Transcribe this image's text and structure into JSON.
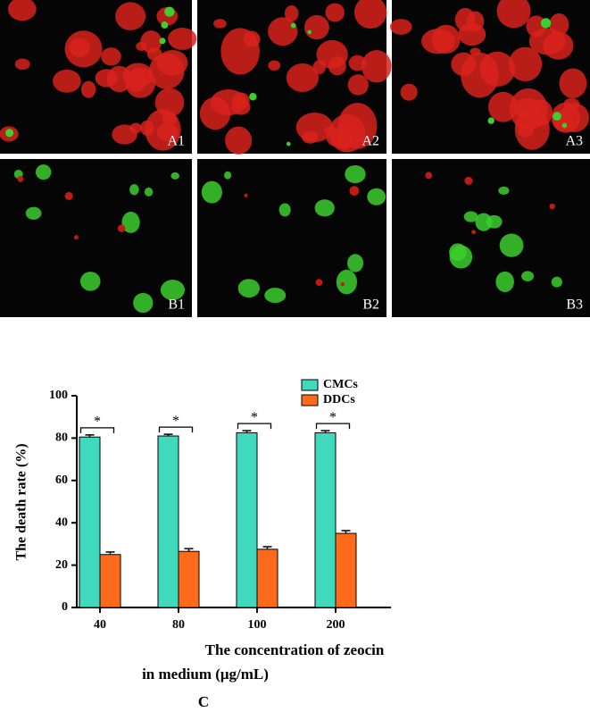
{
  "panel_labels": [
    "A1",
    "A2",
    "A3",
    "B1",
    "B2",
    "B3"
  ],
  "figure_label": "C",
  "chart_data": {
    "type": "bar",
    "y_label": "The death rate (%)",
    "x_label": [
      "The concentration of zeocin",
      "in medium (μg/mL)"
    ],
    "categories": [
      "40",
      "80",
      "100",
      "200"
    ],
    "series": [
      {
        "name": "CMCs",
        "color": "#40d9bd",
        "values": [
          80.5,
          81,
          82.5,
          82.5
        ],
        "errors": [
          1,
          0.8,
          1,
          1
        ]
      },
      {
        "name": "DDCs",
        "color": "#ff6a1a",
        "values": [
          25,
          26.5,
          27.5,
          35
        ],
        "errors": [
          1.2,
          1.3,
          1.2,
          1.3
        ]
      }
    ],
    "annotations": [
      "*",
      "*",
      "*",
      "*"
    ],
    "ylim": [
      0,
      100
    ],
    "yticks": [
      0,
      20,
      40,
      60,
      80,
      100
    ]
  }
}
